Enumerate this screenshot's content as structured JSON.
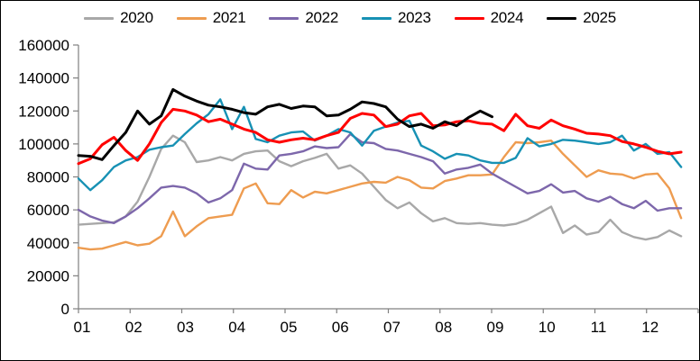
{
  "legend": {
    "items": [
      {
        "label": "2020",
        "color": "#A8A8A8"
      },
      {
        "label": "2021",
        "color": "#EE9C50"
      },
      {
        "label": "2022",
        "color": "#7D67AB"
      },
      {
        "label": "2023",
        "color": "#1791B4"
      },
      {
        "label": "2024",
        "color": "#FF0000"
      },
      {
        "label": "2025",
        "color": "#000000"
      }
    ]
  },
  "chart_data": {
    "type": "line",
    "title": "",
    "xlabel": "",
    "ylabel": "",
    "x_unit": "week-of-year",
    "x_tick_labels": [
      "01",
      "02",
      "03",
      "04",
      "05",
      "06",
      "07",
      "08",
      "09",
      "10",
      "11",
      "12"
    ],
    "y_tick_labels": [
      "0",
      "20000",
      "40000",
      "60000",
      "80000",
      "100000",
      "120000",
      "140000",
      "160000"
    ],
    "ylim": [
      0,
      160000
    ],
    "y_step": 20000,
    "grid": false,
    "legend_position": "top",
    "weeks_per_year": 52,
    "series": [
      {
        "name": "2020",
        "color": "#A8A8A8",
        "width": 2.4,
        "values": [
          51000,
          51500,
          52000,
          52500,
          56000,
          65000,
          80000,
          97000,
          105000,
          101000,
          89000,
          90000,
          92000,
          90000,
          94000,
          95500,
          96000,
          89500,
          86500,
          89500,
          91500,
          94000,
          85000,
          87000,
          82000,
          74000,
          66000,
          61000,
          64500,
          58000,
          53000,
          55000,
          52000,
          51500,
          52000,
          51000,
          50500,
          51500,
          54000,
          58000,
          62000,
          46000,
          50500,
          45000,
          46500,
          54000,
          46500,
          43500,
          42000,
          43500,
          47500,
          44000
        ]
      },
      {
        "name": "2021",
        "color": "#EE9C50",
        "width": 2.4,
        "values": [
          37000,
          36000,
          36500,
          38500,
          40500,
          38500,
          39500,
          44000,
          59000,
          44000,
          50000,
          55000,
          56000,
          57000,
          73000,
          76000,
          64000,
          63500,
          72000,
          67500,
          71000,
          70000,
          72000,
          74000,
          76000,
          77000,
          76500,
          80000,
          78000,
          73500,
          73000,
          77500,
          79000,
          81000,
          81000,
          81500,
          92000,
          101000,
          100500,
          101000,
          102000,
          94000,
          87000,
          80000,
          84000,
          82000,
          81500,
          79000,
          81500,
          82000,
          73000,
          55000
        ]
      },
      {
        "name": "2022",
        "color": "#7D67AB",
        "width": 2.4,
        "values": [
          60000,
          56000,
          53500,
          52000,
          56000,
          61000,
          67000,
          73500,
          74500,
          73500,
          70000,
          64500,
          67000,
          72000,
          88000,
          85000,
          84500,
          93000,
          94000,
          95500,
          98500,
          97500,
          98000,
          106000,
          101000,
          100500,
          97000,
          96000,
          94000,
          92000,
          89500,
          82000,
          84500,
          85500,
          87500,
          82000,
          78000,
          74000,
          70000,
          71500,
          75500,
          70500,
          71500,
          67000,
          65000,
          68000,
          63500,
          61000,
          65500,
          59500,
          61000,
          61000
        ]
      },
      {
        "name": "2023",
        "color": "#1791B4",
        "width": 2.4,
        "values": [
          79000,
          72000,
          78000,
          86000,
          90000,
          92000,
          96500,
          98000,
          99000,
          106000,
          112500,
          118000,
          127000,
          109000,
          122500,
          103000,
          101000,
          105000,
          107000,
          107500,
          102000,
          105000,
          109000,
          107000,
          99000,
          108000,
          110500,
          113000,
          114000,
          99000,
          95500,
          91000,
          94000,
          93000,
          90000,
          88500,
          88500,
          91500,
          103500,
          98500,
          100000,
          102500,
          102000,
          101000,
          100000,
          101000,
          105000,
          96000,
          100000,
          94000,
          95000,
          86000
        ]
      },
      {
        "name": "2024",
        "color": "#FF0000",
        "width": 3,
        "values": [
          88000,
          91000,
          99500,
          104000,
          96000,
          90000,
          100000,
          113000,
          121000,
          120000,
          117500,
          113500,
          115000,
          112000,
          109000,
          107000,
          102500,
          101000,
          102500,
          103500,
          102500,
          105000,
          107000,
          115500,
          118500,
          117500,
          110500,
          112000,
          117000,
          118500,
          111000,
          111500,
          113500,
          114000,
          112500,
          112000,
          108000,
          118000,
          111000,
          109500,
          114500,
          111000,
          109000,
          106500,
          106000,
          105000,
          101500,
          100000,
          98000,
          95500,
          94000,
          95000
        ]
      },
      {
        "name": "2025",
        "color": "#000000",
        "width": 3,
        "values": [
          93000,
          92500,
          90500,
          99000,
          107000,
          120000,
          112000,
          117000,
          133000,
          129000,
          126000,
          123500,
          122500,
          121000,
          119000,
          118000,
          122500,
          124000,
          121500,
          123000,
          122500,
          117000,
          117500,
          121000,
          125500,
          124500,
          122500,
          115000,
          110500,
          112000,
          109500,
          113500,
          111000,
          116000,
          120000,
          116500
        ]
      }
    ]
  }
}
